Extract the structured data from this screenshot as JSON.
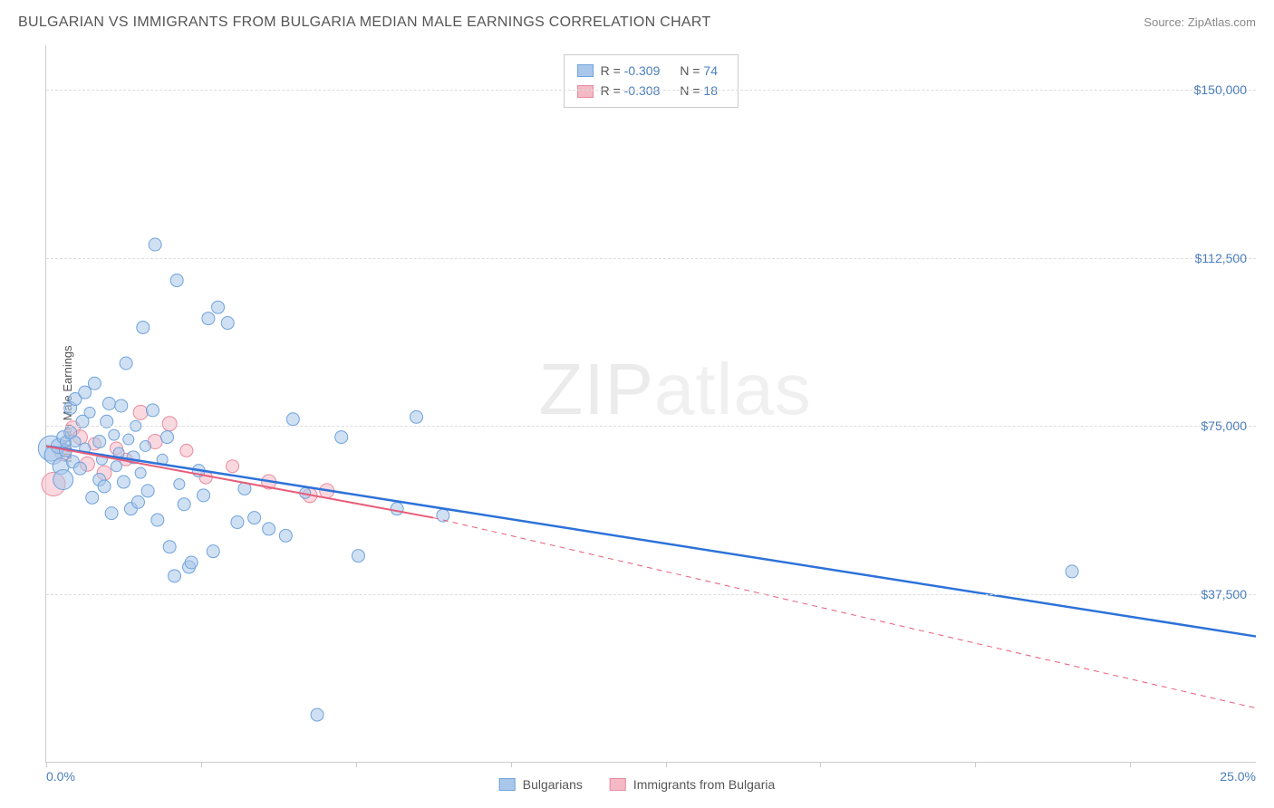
{
  "title": "BULGARIAN VS IMMIGRANTS FROM BULGARIA MEDIAN MALE EARNINGS CORRELATION CHART",
  "source_label": "Source:",
  "source_name": "ZipAtlas.com",
  "y_axis_label": "Median Male Earnings",
  "watermark_zip": "ZIP",
  "watermark_atlas": "atlas",
  "chart": {
    "type": "scatter",
    "xlim": [
      0,
      25
    ],
    "ylim": [
      0,
      160000
    ],
    "x_tick_positions": [
      0,
      3.2,
      6.4,
      9.6,
      12.8,
      16,
      19.2,
      22.4
    ],
    "x_tick_labels_visible": {
      "0": "0.0%",
      "25": "25.0%"
    },
    "y_gridlines": [
      37500,
      75000,
      112500,
      150000
    ],
    "y_tick_labels": {
      "37500": "$37,500",
      "75000": "$75,000",
      "112500": "$112,500",
      "150000": "$150,000"
    },
    "background_color": "#ffffff",
    "grid_color": "#dddddd",
    "axis_color": "#cccccc",
    "tick_label_color": "#4a7ebb",
    "series": {
      "bulgarians": {
        "label": "Bulgarians",
        "fill_color": "#a9c7ea",
        "stroke_color": "#6fa3dc",
        "fill_opacity": 0.55,
        "marker_radius_default": 7,
        "trend_line_color": "#2d72d9",
        "trend_line_width": 2.5,
        "trend_solid_end_x": 25,
        "R": -0.309,
        "N": 74,
        "points": [
          {
            "x": 0.1,
            "y": 70000,
            "r": 14
          },
          {
            "x": 0.15,
            "y": 68500,
            "r": 10
          },
          {
            "x": 0.25,
            "y": 70500,
            "r": 8
          },
          {
            "x": 0.3,
            "y": 66000,
            "r": 9
          },
          {
            "x": 0.35,
            "y": 72500,
            "r": 7
          },
          {
            "x": 0.35,
            "y": 63000,
            "r": 11
          },
          {
            "x": 0.4,
            "y": 69500,
            "r": 7
          },
          {
            "x": 0.4,
            "y": 71500,
            "r": 6
          },
          {
            "x": 0.5,
            "y": 73500,
            "r": 7
          },
          {
            "x": 0.5,
            "y": 79000,
            "r": 7
          },
          {
            "x": 0.55,
            "y": 67000,
            "r": 7
          },
          {
            "x": 0.6,
            "y": 81000,
            "r": 7
          },
          {
            "x": 0.6,
            "y": 71500,
            "r": 6
          },
          {
            "x": 0.7,
            "y": 65500,
            "r": 7
          },
          {
            "x": 0.75,
            "y": 76000,
            "r": 7
          },
          {
            "x": 0.8,
            "y": 82500,
            "r": 7
          },
          {
            "x": 0.8,
            "y": 70000,
            "r": 6
          },
          {
            "x": 0.9,
            "y": 78000,
            "r": 6
          },
          {
            "x": 0.95,
            "y": 59000,
            "r": 7
          },
          {
            "x": 1.0,
            "y": 84500,
            "r": 7
          },
          {
            "x": 1.1,
            "y": 71500,
            "r": 7
          },
          {
            "x": 1.1,
            "y": 63000,
            "r": 7
          },
          {
            "x": 1.15,
            "y": 67500,
            "r": 6
          },
          {
            "x": 1.2,
            "y": 61500,
            "r": 7
          },
          {
            "x": 1.25,
            "y": 76000,
            "r": 7
          },
          {
            "x": 1.3,
            "y": 80000,
            "r": 7
          },
          {
            "x": 1.35,
            "y": 55500,
            "r": 7
          },
          {
            "x": 1.4,
            "y": 73000,
            "r": 6
          },
          {
            "x": 1.45,
            "y": 66000,
            "r": 6
          },
          {
            "x": 1.5,
            "y": 69000,
            "r": 6
          },
          {
            "x": 1.55,
            "y": 79500,
            "r": 7
          },
          {
            "x": 1.6,
            "y": 62500,
            "r": 7
          },
          {
            "x": 1.65,
            "y": 89000,
            "r": 7
          },
          {
            "x": 1.7,
            "y": 72000,
            "r": 6
          },
          {
            "x": 1.75,
            "y": 56500,
            "r": 7
          },
          {
            "x": 1.8,
            "y": 68000,
            "r": 7
          },
          {
            "x": 1.85,
            "y": 75000,
            "r": 6
          },
          {
            "x": 1.9,
            "y": 58000,
            "r": 7
          },
          {
            "x": 1.95,
            "y": 64500,
            "r": 6
          },
          {
            "x": 2.0,
            "y": 97000,
            "r": 7
          },
          {
            "x": 2.05,
            "y": 70500,
            "r": 6
          },
          {
            "x": 2.1,
            "y": 60500,
            "r": 7
          },
          {
            "x": 2.2,
            "y": 78500,
            "r": 7
          },
          {
            "x": 2.25,
            "y": 115500,
            "r": 7
          },
          {
            "x": 2.3,
            "y": 54000,
            "r": 7
          },
          {
            "x": 2.4,
            "y": 67500,
            "r": 6
          },
          {
            "x": 2.5,
            "y": 72500,
            "r": 7
          },
          {
            "x": 2.55,
            "y": 48000,
            "r": 7
          },
          {
            "x": 2.65,
            "y": 41500,
            "r": 7
          },
          {
            "x": 2.7,
            "y": 107500,
            "r": 7
          },
          {
            "x": 2.75,
            "y": 62000,
            "r": 6
          },
          {
            "x": 2.85,
            "y": 57500,
            "r": 7
          },
          {
            "x": 2.95,
            "y": 43500,
            "r": 7
          },
          {
            "x": 3.0,
            "y": 44500,
            "r": 7
          },
          {
            "x": 3.15,
            "y": 65000,
            "r": 7
          },
          {
            "x": 3.25,
            "y": 59500,
            "r": 7
          },
          {
            "x": 3.35,
            "y": 99000,
            "r": 7
          },
          {
            "x": 3.45,
            "y": 47000,
            "r": 7
          },
          {
            "x": 3.55,
            "y": 101500,
            "r": 7
          },
          {
            "x": 3.75,
            "y": 98000,
            "r": 7
          },
          {
            "x": 3.95,
            "y": 53500,
            "r": 7
          },
          {
            "x": 4.1,
            "y": 61000,
            "r": 7
          },
          {
            "x": 4.3,
            "y": 54500,
            "r": 7
          },
          {
            "x": 4.6,
            "y": 52000,
            "r": 7
          },
          {
            "x": 4.95,
            "y": 50500,
            "r": 7
          },
          {
            "x": 5.1,
            "y": 76500,
            "r": 7
          },
          {
            "x": 5.35,
            "y": 60000,
            "r": 6
          },
          {
            "x": 5.6,
            "y": 10500,
            "r": 7
          },
          {
            "x": 6.1,
            "y": 72500,
            "r": 7
          },
          {
            "x": 6.45,
            "y": 46000,
            "r": 7
          },
          {
            "x": 7.25,
            "y": 56500,
            "r": 7
          },
          {
            "x": 7.65,
            "y": 77000,
            "r": 7
          },
          {
            "x": 8.2,
            "y": 55000,
            "r": 7
          },
          {
            "x": 21.2,
            "y": 42500,
            "r": 7
          }
        ],
        "trend_y_at_x0": 70500,
        "trend_y_at_xmax": 28000
      },
      "immigrants": {
        "label": "Immigrants from Bulgaria",
        "fill_color": "#f4b9c5",
        "stroke_color": "#e98ba0",
        "fill_opacity": 0.55,
        "marker_radius_default": 7,
        "trend_line_color": "#e85d7a",
        "trend_line_width": 2,
        "trend_solid_end_x": 8,
        "trend_dashed": true,
        "R": -0.308,
        "N": 18,
        "points": [
          {
            "x": 0.15,
            "y": 62000,
            "r": 13
          },
          {
            "x": 0.35,
            "y": 69000,
            "r": 9
          },
          {
            "x": 0.55,
            "y": 74500,
            "r": 8
          },
          {
            "x": 0.7,
            "y": 72500,
            "r": 8
          },
          {
            "x": 0.85,
            "y": 66500,
            "r": 8
          },
          {
            "x": 1.0,
            "y": 71000,
            "r": 7
          },
          {
            "x": 1.2,
            "y": 64500,
            "r": 8
          },
          {
            "x": 1.45,
            "y": 70000,
            "r": 7
          },
          {
            "x": 1.65,
            "y": 67500,
            "r": 7
          },
          {
            "x": 1.95,
            "y": 78000,
            "r": 8
          },
          {
            "x": 2.25,
            "y": 71500,
            "r": 8
          },
          {
            "x": 2.55,
            "y": 75500,
            "r": 8
          },
          {
            "x": 2.9,
            "y": 69500,
            "r": 7
          },
          {
            "x": 3.3,
            "y": 63500,
            "r": 7
          },
          {
            "x": 3.85,
            "y": 66000,
            "r": 7
          },
          {
            "x": 4.6,
            "y": 62500,
            "r": 8
          },
          {
            "x": 5.45,
            "y": 59500,
            "r": 8
          },
          {
            "x": 5.8,
            "y": 60500,
            "r": 8
          }
        ],
        "trend_y_at_x0": 70500,
        "trend_y_at_solid_end": 54500,
        "trend_y_at_xmax": 12000
      }
    }
  },
  "legend_top": {
    "rows": [
      {
        "swatch_fill": "#a9c7ea",
        "swatch_stroke": "#6fa3dc",
        "R_label": "R =",
        "R": "-0.309",
        "N_label": "N =",
        "N": "74"
      },
      {
        "swatch_fill": "#f4b9c5",
        "swatch_stroke": "#e98ba0",
        "R_label": "R =",
        "R": "-0.308",
        "N_label": "N =",
        "N": "18"
      }
    ]
  },
  "legend_bottom": {
    "items": [
      {
        "swatch_fill": "#a9c7ea",
        "swatch_stroke": "#6fa3dc",
        "label": "Bulgarians"
      },
      {
        "swatch_fill": "#f4b9c5",
        "swatch_stroke": "#e98ba0",
        "label": "Immigrants from Bulgaria"
      }
    ]
  }
}
